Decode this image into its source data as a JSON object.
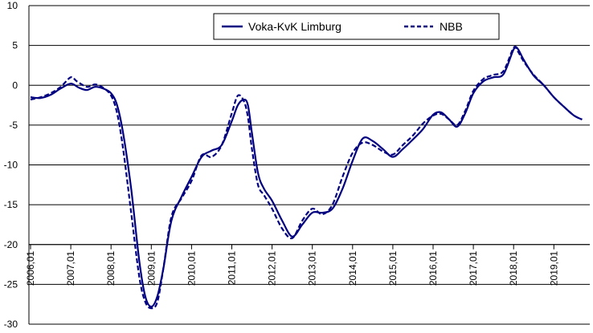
{
  "chart_data": {
    "type": "line",
    "title": "",
    "xlabel": "",
    "ylabel": "",
    "ylim": [
      -30,
      10
    ],
    "yticks": [
      10,
      5,
      0,
      -5,
      -10,
      -15,
      -20,
      -25,
      -30
    ],
    "ytick_labels": [
      "10",
      "5",
      "0",
      "-5",
      "-10",
      "-15",
      "-20",
      "-25",
      "-30"
    ],
    "xticks": [
      2006.0,
      2007.0,
      2008.0,
      2009.0,
      2010.0,
      2011.0,
      2012.0,
      2013.0,
      2014.0,
      2015.0,
      2016.0,
      2017.0,
      2018.0,
      2019.0
    ],
    "xtick_labels": [
      "2006,01",
      "2007,01",
      "2008,01",
      "2009,01",
      "2010,01",
      "2011,01",
      "2012,01",
      "2013,01",
      "2014,01",
      "2015,01",
      "2016,01",
      "2017,01",
      "2018,01",
      "2019,01"
    ],
    "grid": true,
    "legend_position": "top-center",
    "series": [
      {
        "name": "Voka-KvK Limburg",
        "style": "solid",
        "color": "#000080",
        "x": [
          2006.0,
          2006.25,
          2006.5,
          2006.75,
          2007.0,
          2007.2,
          2007.4,
          2007.6,
          2007.8,
          2008.0,
          2008.15,
          2008.3,
          2008.5,
          2008.7,
          2008.85,
          2009.0,
          2009.15,
          2009.3,
          2009.5,
          2009.75,
          2010.0,
          2010.25,
          2010.5,
          2010.75,
          2011.0,
          2011.15,
          2011.3,
          2011.4,
          2011.5,
          2011.65,
          2011.8,
          2012.0,
          2012.25,
          2012.5,
          2012.75,
          2013.0,
          2013.25,
          2013.5,
          2013.75,
          2014.0,
          2014.25,
          2014.5,
          2014.75,
          2015.0,
          2015.25,
          2015.5,
          2015.75,
          2016.0,
          2016.2,
          2016.4,
          2016.6,
          2016.8,
          2017.0,
          2017.25,
          2017.5,
          2017.75,
          2018.0,
          2018.1,
          2018.25,
          2018.5,
          2018.75,
          2019.0,
          2019.25,
          2019.5,
          2019.7
        ],
        "values": [
          -1.5,
          -1.6,
          -1.2,
          -0.4,
          0.2,
          -0.3,
          -0.6,
          -0.2,
          -0.4,
          -1.0,
          -2.5,
          -6.0,
          -13.0,
          -22.0,
          -26.5,
          -27.8,
          -26.5,
          -23.0,
          -17.0,
          -14.0,
          -11.5,
          -9.0,
          -8.2,
          -7.5,
          -4.5,
          -2.5,
          -1.8,
          -2.5,
          -6.0,
          -11.0,
          -13.0,
          -14.5,
          -17.0,
          -19.0,
          -17.5,
          -16.0,
          -16.0,
          -15.5,
          -13.0,
          -9.5,
          -6.7,
          -7.0,
          -8.0,
          -9.0,
          -8.0,
          -6.8,
          -5.5,
          -3.7,
          -3.4,
          -4.3,
          -5.2,
          -3.5,
          -1.0,
          0.5,
          1.0,
          1.4,
          4.5,
          4.6,
          3.2,
          1.2,
          0.0,
          -1.5,
          -2.7,
          -3.8,
          -4.3
        ]
      },
      {
        "name": "NBB",
        "style": "dashed",
        "color": "#000080",
        "x": [
          2006.0,
          2006.25,
          2006.5,
          2006.75,
          2007.0,
          2007.15,
          2007.4,
          2007.6,
          2007.8,
          2008.0,
          2008.15,
          2008.3,
          2008.5,
          2008.7,
          2008.85,
          2009.0,
          2009.15,
          2009.3,
          2009.5,
          2009.75,
          2010.0,
          2010.25,
          2010.5,
          2010.75,
          2011.0,
          2011.15,
          2011.3,
          2011.4,
          2011.5,
          2011.65,
          2011.8,
          2012.0,
          2012.25,
          2012.5,
          2012.75,
          2013.0,
          2013.25,
          2013.5,
          2013.75,
          2014.0,
          2014.25,
          2014.5,
          2014.75,
          2015.0,
          2015.25,
          2015.5,
          2015.75,
          2016.0,
          2016.2,
          2016.4,
          2016.6,
          2016.8,
          2017.0,
          2017.25,
          2017.5,
          2017.75,
          2018.0,
          2018.1,
          2018.25,
          2018.5,
          2018.75,
          2019.0,
          2019.25,
          2019.5,
          2019.7
        ],
        "values": [
          -1.8,
          -1.5,
          -1.0,
          -0.2,
          1.0,
          0.5,
          -0.2,
          0.1,
          -0.3,
          -1.3,
          -3.5,
          -8.0,
          -16.0,
          -24.0,
          -27.2,
          -28.0,
          -27.2,
          -23.0,
          -16.5,
          -14.2,
          -12.0,
          -8.8,
          -9.0,
          -7.5,
          -3.5,
          -1.3,
          -2.0,
          -4.0,
          -8.0,
          -12.5,
          -13.8,
          -15.5,
          -18.0,
          -19.2,
          -17.0,
          -15.5,
          -16.2,
          -15.0,
          -11.5,
          -8.5,
          -7.2,
          -7.5,
          -8.3,
          -8.7,
          -7.5,
          -6.3,
          -4.8,
          -3.8,
          -3.6,
          -4.3,
          -5.0,
          -3.2,
          -0.7,
          0.8,
          1.3,
          1.8,
          4.7,
          4.3,
          3.0,
          1.3,
          0.0,
          -1.5,
          -2.7,
          -3.8,
          -4.3
        ]
      }
    ]
  }
}
